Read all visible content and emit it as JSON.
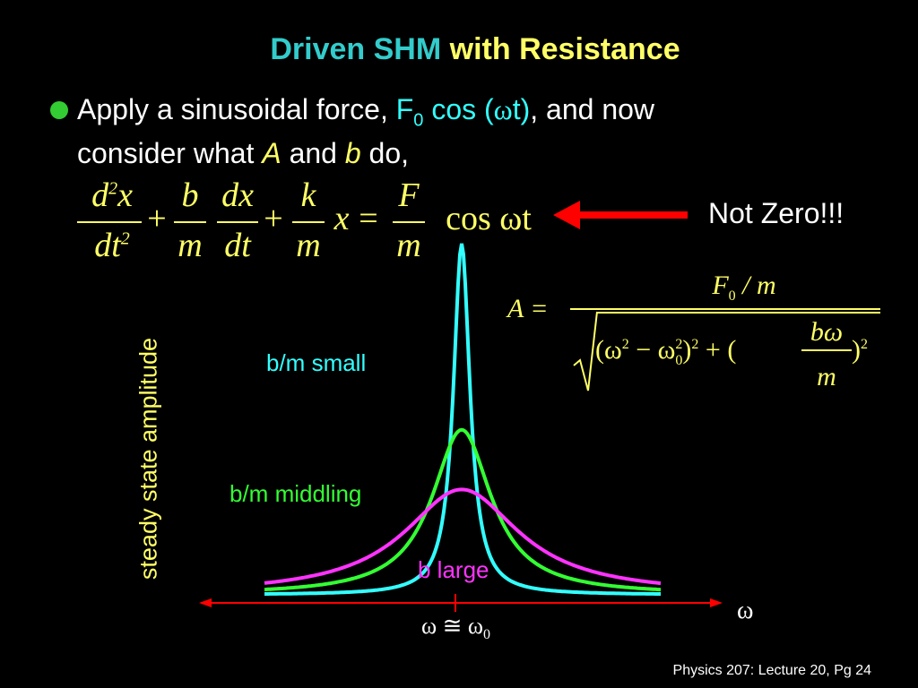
{
  "title": {
    "part1": "Driven SHM",
    "part2": "with Resistance"
  },
  "bullet": {
    "text1": "Apply a sinusoidal force,",
    "force_F": "F",
    "force_sub": "0",
    "force_rest": " cos (",
    "omega": "ω",
    "force_close": "t)",
    "text2": ", and now",
    "line2_a": "consider what ",
    "var_A": "A",
    "line2_b": " and ",
    "var_b": "b",
    "line2_c": " do,"
  },
  "equation": {
    "frac1_num": "d",
    "frac1_num_sup": "2",
    "frac1_num_x": "x",
    "frac1_den": "dt",
    "frac1_den_sup": "2",
    "plus1": "+",
    "frac2_num": "b",
    "frac2_den": "m",
    "frac3_num": "dx",
    "frac3_den": "dt",
    "plus2": "+",
    "frac4_num": "k",
    "frac4_den": "m",
    "x": "x",
    "equals": "=",
    "frac5_num": "F",
    "frac5_den": "m",
    "rhs": "cos ωt"
  },
  "annotation": {
    "not_zero": "Not Zero!!!"
  },
  "amplitude_formula": {
    "lhs": "A =",
    "num_F": "F",
    "num_sub": "0",
    "num_rest": " / m",
    "den_open": "(ω",
    "den_sq1": "2",
    "den_minus": " − ω",
    "den_sq0": "2",
    "den_sub0": "0",
    "den_close": ")",
    "den_sq2": "2",
    "den_plus": " + (",
    "den_frac_num": "bω",
    "den_frac_den": "m",
    "den_close2": ")",
    "den_sq3": "2"
  },
  "chart_data": {
    "type": "line",
    "title": "",
    "xlabel": "ω",
    "ylabel": "steady state amplitude",
    "x_marker_label": "ω ≅ ω",
    "x_marker_sub": "0",
    "series": [
      {
        "name": "b/m small",
        "color": "#33ffff",
        "peak": 1.0,
        "width": 0.05
      },
      {
        "name": "b/m middling",
        "color": "#33ff33",
        "peak": 0.47,
        "width": 0.18
      },
      {
        "name": "b large",
        "color": "#ff33ff",
        "peak": 0.3,
        "width": 0.35
      }
    ],
    "curve_labels": {
      "small": "b/m small",
      "middling": "b/m middling",
      "large": "b large"
    },
    "axis_color": "#ff0000"
  },
  "colors": {
    "title_cyan": "#33cccc",
    "title_yellow": "#ffff66",
    "bullet": "#33cc33",
    "arrow": "#ff0000"
  },
  "footer": "Physics 207: Lecture 20, Pg 24"
}
